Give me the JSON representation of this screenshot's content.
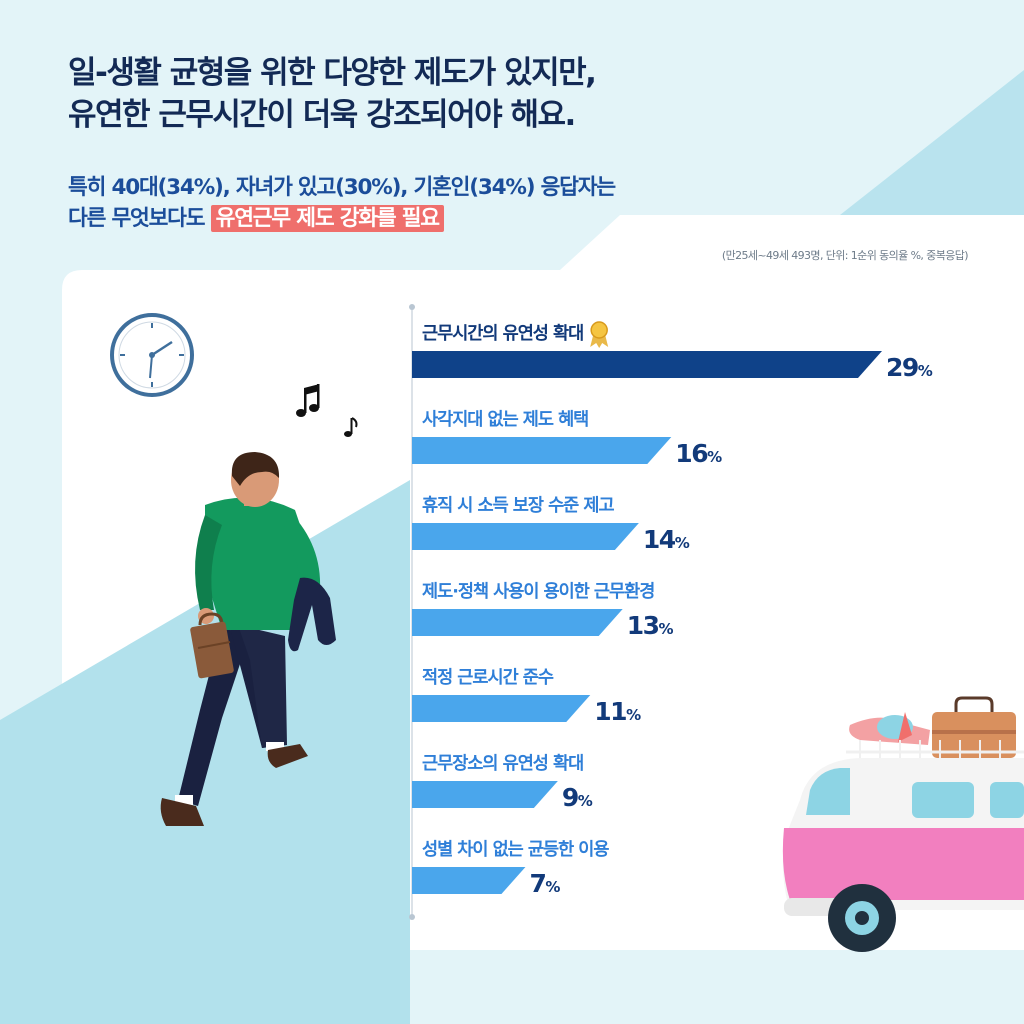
{
  "headline": {
    "line1": "일-생활 균형을 위한 다양한 제도가 있지만,",
    "line2": "유연한 근무시간이 더욱 강조되어야 해요."
  },
  "subheadline": {
    "line1": "특히 40대(34%), 자녀가 있고(30%), 기혼인(34%) 응답자는",
    "line2_prefix": "다른 무엇보다도 ",
    "line2_highlight": "유연근무 제도 강화를 필요"
  },
  "note": "(만25세~49세 493명, 단위: 1순위 동의율 %, 중복응답)",
  "icons": [
    "clock-icon",
    "music-note-icon",
    "gold-medal-icon",
    "briefcase-icon",
    "suitcase-icon",
    "van-icon"
  ],
  "colors": {
    "top_bar": "#0f4289",
    "bar": "#4aa6ec",
    "headline": "#132a55",
    "highlight": "#ef6f6c",
    "value": "#123a7a"
  },
  "chart_data": {
    "type": "bar",
    "orientation": "horizontal",
    "unit": "%",
    "xlim": [
      0,
      29
    ],
    "categories": [
      "근무시간의 유연성 확대",
      "사각지대 없는 제도 혜택",
      "휴직 시 소득 보장 수준 제고",
      "제도·정책 사용이 용이한 근무환경",
      "적정 근로시간 준수",
      "근무장소의 유연성 확대",
      "성별 차이 없는 균등한 이용"
    ],
    "values": [
      29,
      16,
      14,
      13,
      11,
      9,
      7
    ],
    "highlight_index": 0
  }
}
